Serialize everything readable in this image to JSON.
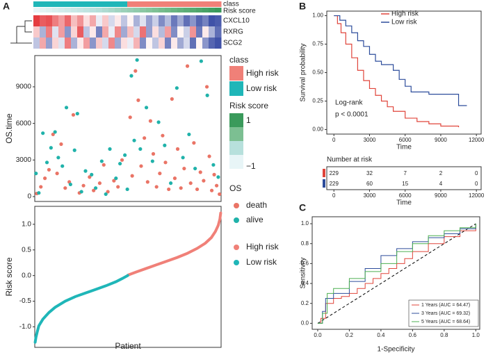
{
  "chart_data": [
    {
      "type": "heatmap",
      "panel": "A",
      "annotations": [
        {
          "label": "class"
        },
        {
          "label": "Risk score",
          "values": [
            -1,
            -0.93,
            -0.86,
            -0.79,
            -0.72,
            -0.66,
            -0.59,
            -0.52,
            -0.45,
            -0.38,
            -0.31,
            -0.24,
            -0.17,
            -0.1,
            -0.03,
            0.03,
            0.1,
            0.17,
            0.24,
            0.31,
            0.38,
            0.45,
            0.52,
            0.59,
            0.66,
            0.72,
            0.79,
            0.86,
            0.93,
            1
          ]
        }
      ],
      "rows": [
        {
          "label": "CXCL10",
          "values": [
            1.8,
            1.5,
            1.6,
            1.2,
            0.9,
            1.4,
            0.6,
            1.0,
            0.3,
            0.8,
            -0.2,
            0.5,
            -0.4,
            0.2,
            -0.6,
            0.1,
            -0.8,
            -0.3,
            -1.0,
            -0.5,
            -1.2,
            -0.7,
            -1.4,
            -0.9,
            -1.5,
            -1.1,
            -1.6,
            -1.3,
            -1.8,
            -1.7
          ]
        },
        {
          "label": "RXRG",
          "values": [
            0.5,
            -0.8,
            1.2,
            -0.3,
            0.9,
            -1.1,
            0.4,
            1.5,
            -0.6,
            0.2,
            -1.3,
            0.8,
            -0.2,
            1.1,
            -0.9,
            0.6,
            -0.4,
            1.3,
            -1.0,
            0.3,
            -0.7,
            0.9,
            -1.2,
            0.1,
            -0.5,
            1.0,
            -1.4,
            0.2,
            -0.8,
            -1.5
          ]
        },
        {
          "label": "SCG2",
          "values": [
            -0.6,
            0.8,
            -1.0,
            0.4,
            -0.3,
            1.2,
            -0.8,
            0.2,
            0.9,
            -1.1,
            0.5,
            -0.4,
            1.1,
            -0.9,
            0.3,
            -0.2,
            0.7,
            -1.2,
            0.1,
            -0.6,
            0.4,
            -1.3,
            0.2,
            -0.9,
            -0.4,
            -1.5,
            0.1,
            -1.1,
            -1.6,
            -1.8
          ]
        }
      ],
      "zlim": [
        -2,
        2
      ],
      "colors": [
        "#2b3f9e",
        "#ffffff",
        "#e2262b"
      ],
      "class_legend": {
        "title": "class",
        "items": [
          {
            "name": "High risk",
            "color": "#f08078"
          },
          {
            "name": "Low risk",
            "color": "#1fb6b8"
          }
        ]
      },
      "risk_legend": {
        "title": "Risk score",
        "ticks": [
          1,
          {
            "value": -1,
            "label": "−1"
          }
        ],
        "colors": [
          "#3a9a5b",
          "#7cbf92",
          "#b7e0dc",
          "#e8f5f7"
        ]
      }
    },
    {
      "type": "scatter",
      "ylabel": "OS.time",
      "legend_title": "OS",
      "xlim": [
        0,
        459
      ],
      "ylim": [
        -400,
        11560
      ],
      "yticks": [
        0,
        3000,
        6000,
        9000
      ],
      "series": [
        {
          "name": "death",
          "color": "#ea7466",
          "x": [
            5,
            15,
            25,
            35,
            45,
            55,
            65,
            75,
            85,
            95,
            110,
            120,
            135,
            145,
            160,
            170,
            180,
            195,
            205,
            215,
            235,
            240,
            248,
            255,
            262,
            270,
            278,
            285,
            292,
            300,
            308,
            315,
            322,
            330,
            338,
            345,
            352,
            360,
            368,
            376,
            384,
            392,
            400,
            408,
            416,
            424,
            430,
            436,
            442,
            448,
            455
          ],
          "values": [
            250,
            800,
            1500,
            2200,
            5100,
            1900,
            4300,
            700,
            1200,
            6700,
            300,
            900,
            1600,
            500,
            1100,
            2600,
            400,
            1300,
            800,
            3000,
            6500,
            1700,
            10300,
            7900,
            2500,
            4800,
            1200,
            6200,
            3500,
            800,
            1900,
            5000,
            2800,
            600,
            8000,
            1500,
            3900,
            700,
            2300,
            10700,
            1100,
            4400,
            600,
            2000,
            1300,
            9000,
            3300,
            500,
            1800,
            900,
            200
          ]
        },
        {
          "name": "alive",
          "color": "#20b2aa",
          "x": [
            3,
            10,
            20,
            30,
            40,
            50,
            58,
            68,
            78,
            88,
            98,
            105,
            115,
            125,
            140,
            150,
            165,
            175,
            185,
            200,
            210,
            222,
            228,
            238,
            245,
            252,
            260,
            275,
            290,
            305,
            320,
            335,
            350,
            365,
            380,
            395,
            410,
            425,
            440,
            452
          ],
          "values": [
            1900,
            300,
            5200,
            2800,
            4000,
            5300,
            3200,
            2500,
            7300,
            1000,
            3800,
            6800,
            400,
            2100,
            1800,
            700,
            2900,
            200,
            3900,
            1500,
            2700,
            3400,
            600,
            9900,
            4600,
            11200,
            3900,
            7300,
            2900,
            6100,
            4200,
            1100,
            8900,
            3200,
            5100,
            2300,
            11100,
            8300,
            2600,
            1600
          ]
        }
      ]
    },
    {
      "type": "line",
      "ylabel": "Risk score",
      "xlabel": "Patient",
      "xlim": [
        0,
        459
      ],
      "ylim": [
        -1.4,
        1.35
      ],
      "yticks": [
        {
          "value": 1,
          "label": "1.0"
        },
        {
          "value": 0.5,
          "label": "0.5"
        },
        {
          "value": 0,
          "label": "0.0"
        },
        {
          "value": -0.5,
          "label": "-0.5"
        },
        {
          "value": -1,
          "label": "-1.0"
        }
      ],
      "series": [
        {
          "name": "High risk",
          "color": "#f08078",
          "x": [
            230,
            250,
            275,
            300,
            325,
            350,
            375,
            400,
            420,
            435,
            445,
            452,
            456,
            458
          ],
          "values": [
            0.01,
            0.07,
            0.14,
            0.21,
            0.28,
            0.35,
            0.43,
            0.53,
            0.63,
            0.74,
            0.86,
            0.98,
            1.1,
            1.22
          ]
        },
        {
          "name": "Low risk",
          "color": "#1fb6b8",
          "x": [
            1,
            3,
            6,
            10,
            20,
            35,
            50,
            75,
            100,
            125,
            150,
            175,
            200,
            215,
            229
          ],
          "values": [
            -1.3,
            -1.2,
            -1.1,
            -0.98,
            -0.85,
            -0.72,
            -0.62,
            -0.5,
            -0.41,
            -0.34,
            -0.27,
            -0.2,
            -0.12,
            -0.06,
            0.0
          ]
        }
      ]
    },
    {
      "type": "step",
      "panel": "B",
      "xlabel": "Time",
      "ylabel": "Survival probability",
      "xlim": [
        -600,
        12400
      ],
      "ylim": [
        -0.04,
        1.04
      ],
      "xticks": [
        0,
        3000,
        6000,
        9000,
        12000
      ],
      "yticks": [
        {
          "value": 0,
          "label": "0.00"
        },
        {
          "value": 0.25,
          "label": "0.25"
        },
        {
          "value": 0.5,
          "label": "0.50"
        },
        {
          "value": 0.75,
          "label": "0.75"
        },
        {
          "value": 1,
          "label": "1.00"
        }
      ],
      "legend": "top-right",
      "annotations": [
        "Log-rank",
        "p < 0.0001"
      ],
      "series": [
        {
          "name": "High risk",
          "color": "#e0443a",
          "x": [
            0,
            300,
            600,
            1000,
            1500,
            2000,
            2500,
            3000,
            3500,
            4000,
            4500,
            5000,
            6000,
            7000,
            8000,
            9000,
            10500
          ],
          "values": [
            1,
            0.93,
            0.85,
            0.75,
            0.63,
            0.52,
            0.43,
            0.36,
            0.3,
            0.25,
            0.2,
            0.16,
            0.1,
            0.07,
            0.05,
            0.03,
            0.02
          ]
        },
        {
          "name": "Low risk",
          "color": "#2c4c9b",
          "x": [
            0,
            500,
            1000,
            1500,
            2000,
            2500,
            3000,
            3500,
            4000,
            5000,
            5500,
            6000,
            6500,
            8000,
            10000,
            10500,
            11200
          ],
          "values": [
            1,
            0.96,
            0.91,
            0.85,
            0.78,
            0.73,
            0.66,
            0.6,
            0.57,
            0.52,
            0.44,
            0.38,
            0.33,
            0.31,
            0.31,
            0.21,
            0.21
          ]
        }
      ],
      "risk_table": {
        "title": "Number at risk",
        "rows": [
          {
            "color": "#e0443a",
            "values": [
              229,
              32,
              7,
              2,
              0
            ]
          },
          {
            "color": "#2c4c9b",
            "values": [
              229,
              60,
              15,
              4,
              0
            ]
          }
        ]
      }
    },
    {
      "type": "roc",
      "panel": "C",
      "xlabel": "1-Specificity",
      "ylabel": "Sensitivity",
      "xlim": [
        -0.035,
        1.025
      ],
      "ylim": [
        -0.06,
        1.07
      ],
      "diagonal": true,
      "legend": "bottom-right",
      "xticks": [
        {
          "value": 0,
          "label": "0.0"
        },
        {
          "value": 0.2,
          "label": "0.2"
        },
        {
          "value": 0.4,
          "label": "0.4"
        },
        {
          "value": 0.6,
          "label": "0.6"
        },
        {
          "value": 0.8,
          "label": "0.8"
        },
        {
          "value": 1,
          "label": "1.0"
        }
      ],
      "yticks": [
        {
          "value": 0,
          "label": "0.0"
        },
        {
          "value": 0.2,
          "label": "0.2"
        },
        {
          "value": 0.4,
          "label": "0.4"
        },
        {
          "value": 0.6,
          "label": "0.6"
        },
        {
          "value": 0.8,
          "label": "0.8"
        },
        {
          "value": 1,
          "label": "1.0"
        }
      ],
      "series": [
        {
          "name": "1 Years (AUC = 64.47)",
          "color": "#e0443a",
          "x": [
            0,
            0.02,
            0.05,
            0.1,
            0.15,
            0.2,
            0.25,
            0.3,
            0.35,
            0.4,
            0.45,
            0.5,
            0.55,
            0.6,
            0.7,
            0.8,
            0.9,
            1
          ],
          "values": [
            0,
            0.05,
            0.2,
            0.25,
            0.27,
            0.3,
            0.35,
            0.4,
            0.45,
            0.5,
            0.55,
            0.6,
            0.65,
            0.72,
            0.8,
            0.87,
            0.93,
            1
          ]
        },
        {
          "name": "3 Years (AUC = 69.32)",
          "color": "#2c4c9b",
          "x": [
            0,
            0.03,
            0.05,
            0.1,
            0.2,
            0.3,
            0.4,
            0.5,
            0.6,
            0.7,
            0.8,
            0.9,
            1
          ],
          "values": [
            0,
            0.12,
            0.25,
            0.3,
            0.42,
            0.55,
            0.68,
            0.75,
            0.82,
            0.86,
            0.9,
            0.95,
            1
          ]
        },
        {
          "name": "5 Years (AUC = 68.64)",
          "color": "#4caf50",
          "x": [
            0,
            0.03,
            0.06,
            0.1,
            0.2,
            0.3,
            0.4,
            0.5,
            0.6,
            0.7,
            0.8,
            0.9,
            1
          ],
          "values": [
            0,
            0.1,
            0.3,
            0.35,
            0.45,
            0.52,
            0.6,
            0.72,
            0.8,
            0.88,
            0.93,
            0.96,
            1
          ]
        }
      ]
    }
  ]
}
